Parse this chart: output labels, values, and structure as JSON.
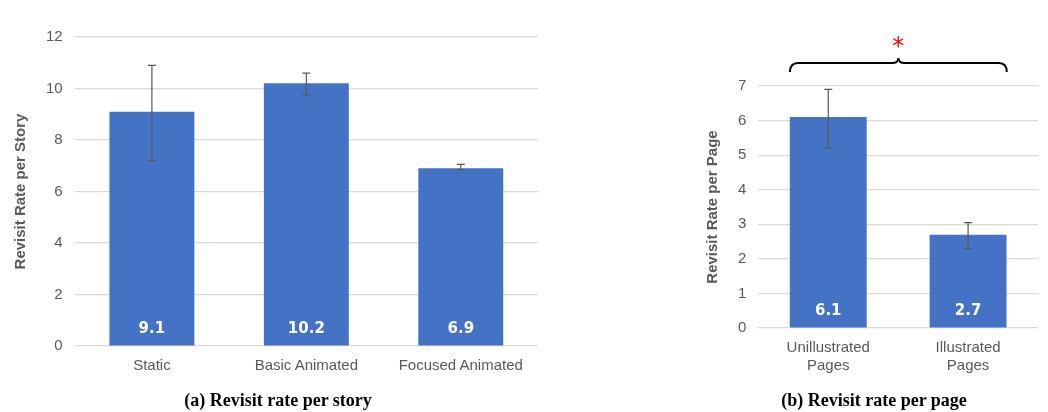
{
  "chart_data": [
    {
      "type": "bar",
      "title": "(a) Revisit rate per story",
      "ylabel": "Revisit Rate per Story",
      "categories": [
        "Static",
        "Basic Animated",
        "Focused Animated"
      ],
      "values": [
        9.1,
        10.2,
        6.9
      ],
      "errors": [
        [
          7.2,
          10.9
        ],
        [
          9.75,
          10.6
        ],
        [
          6.85,
          7.05
        ]
      ],
      "color": "#4472c4",
      "ylim": [
        0,
        12
      ],
      "yticks": [
        0,
        2,
        4,
        6,
        8,
        10,
        12
      ],
      "grid": "y",
      "data_labels": true
    },
    {
      "type": "bar",
      "title": "(b) Revisit rate per page",
      "ylabel": "Revisit Rate per Page",
      "categories": [
        "Unillustrated Pages",
        "Illustrated Pages"
      ],
      "values": [
        6.1,
        2.7
      ],
      "errors": [
        [
          5.2,
          6.9
        ],
        [
          2.3,
          3.05
        ]
      ],
      "color": "#4472c4",
      "ylim": [
        0,
        7
      ],
      "yticks": [
        0,
        1,
        2,
        3,
        4,
        5,
        6,
        7
      ],
      "grid": "y",
      "data_labels": true,
      "annotations": [
        "*"
      ]
    }
  ]
}
